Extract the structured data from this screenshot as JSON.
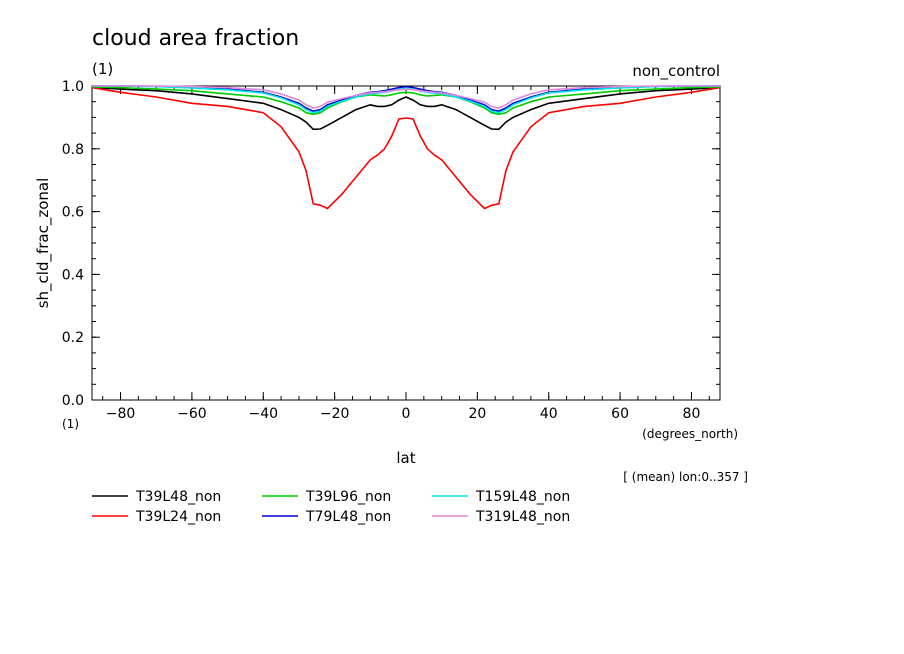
{
  "chart_data": {
    "type": "line",
    "title": "cloud area fraction",
    "title_units": "(1)",
    "subtitle_right": "non_control",
    "ylabel": "sh_cld_frac_zonal",
    "y_units": "(1)",
    "xlabel": "lat",
    "x_units": "(degrees_north)",
    "note": "[ (mean) lon:0..357 ]",
    "xlim": [
      -88,
      88
    ],
    "ylim": [
      0.0,
      1.0
    ],
    "x_ticks": [
      -80,
      -60,
      -40,
      -20,
      0,
      20,
      40,
      60,
      80
    ],
    "y_ticks": [
      0.0,
      0.2,
      0.4,
      0.6,
      0.8,
      1.0
    ],
    "x_tick_labels": [
      "−80",
      "−60",
      "−40",
      "−20",
      "0",
      "20",
      "40",
      "60",
      "80"
    ],
    "y_tick_labels": [
      "0.0",
      "0.2",
      "0.4",
      "0.6",
      "0.8",
      "1.0"
    ],
    "grid": false,
    "legend_position": "bottom",
    "x": [
      -88,
      -80,
      -70,
      -60,
      -50,
      -40,
      -35,
      -30,
      -28,
      -26,
      -24,
      -22,
      -18,
      -14,
      -10,
      -8,
      -6,
      -4,
      -2,
      0,
      2,
      4,
      6,
      8,
      10,
      14,
      18,
      22,
      24,
      26,
      28,
      30,
      35,
      40,
      50,
      60,
      70,
      80,
      88
    ],
    "series": [
      {
        "name": "T39L48_non",
        "color": "#000000",
        "values": [
          0.995,
          0.99,
          0.985,
          0.975,
          0.96,
          0.945,
          0.925,
          0.9,
          0.885,
          0.862,
          0.863,
          0.875,
          0.9,
          0.925,
          0.94,
          0.935,
          0.935,
          0.94,
          0.955,
          0.965,
          0.955,
          0.94,
          0.935,
          0.935,
          0.94,
          0.925,
          0.9,
          0.875,
          0.863,
          0.862,
          0.885,
          0.9,
          0.925,
          0.945,
          0.96,
          0.975,
          0.985,
          0.99,
          0.995
        ]
      },
      {
        "name": "T39L24_non",
        "color": "#ff0000",
        "values": [
          0.995,
          0.98,
          0.965,
          0.945,
          0.935,
          0.915,
          0.87,
          0.79,
          0.73,
          0.625,
          0.62,
          0.61,
          0.655,
          0.71,
          0.765,
          0.78,
          0.8,
          0.84,
          0.895,
          0.898,
          0.895,
          0.84,
          0.8,
          0.78,
          0.765,
          0.71,
          0.655,
          0.61,
          0.62,
          0.625,
          0.73,
          0.79,
          0.87,
          0.915,
          0.935,
          0.945,
          0.965,
          0.98,
          0.995
        ]
      },
      {
        "name": "T39L96_non",
        "color": "#00cc00",
        "values": [
          0.997,
          0.995,
          0.99,
          0.985,
          0.975,
          0.965,
          0.95,
          0.93,
          0.915,
          0.91,
          0.915,
          0.93,
          0.95,
          0.965,
          0.972,
          0.97,
          0.968,
          0.972,
          0.978,
          0.98,
          0.978,
          0.972,
          0.968,
          0.97,
          0.972,
          0.965,
          0.95,
          0.93,
          0.915,
          0.91,
          0.915,
          0.93,
          0.95,
          0.965,
          0.975,
          0.985,
          0.99,
          0.995,
          0.997
        ]
      },
      {
        "name": "T79L48_non",
        "color": "#0000cc",
        "values": [
          1.0,
          1.0,
          0.999,
          0.995,
          0.99,
          0.98,
          0.965,
          0.945,
          0.93,
          0.92,
          0.925,
          0.94,
          0.955,
          0.97,
          0.98,
          0.982,
          0.985,
          0.99,
          0.995,
          0.998,
          0.995,
          0.99,
          0.985,
          0.982,
          0.98,
          0.97,
          0.955,
          0.94,
          0.925,
          0.92,
          0.93,
          0.945,
          0.965,
          0.98,
          0.99,
          0.995,
          0.999,
          1.0,
          1.0
        ]
      },
      {
        "name": "T159L48_non",
        "color": "#00e5e5",
        "values": [
          1.0,
          1.0,
          0.998,
          0.994,
          0.988,
          0.978,
          0.962,
          0.94,
          0.925,
          0.915,
          0.92,
          0.935,
          0.952,
          0.965,
          0.975,
          0.977,
          0.98,
          0.984,
          0.99,
          0.993,
          0.99,
          0.984,
          0.98,
          0.977,
          0.975,
          0.965,
          0.952,
          0.935,
          0.92,
          0.915,
          0.925,
          0.94,
          0.962,
          0.978,
          0.988,
          0.994,
          0.998,
          1.0,
          1.0
        ]
      },
      {
        "name": "T319L48_non",
        "color": "#dd88dd",
        "values": [
          1.0,
          1.0,
          1.0,
          0.998,
          0.995,
          0.988,
          0.975,
          0.955,
          0.94,
          0.93,
          0.935,
          0.948,
          0.96,
          0.97,
          0.978,
          0.98,
          0.982,
          0.985,
          0.988,
          0.99,
          0.988,
          0.985,
          0.982,
          0.98,
          0.978,
          0.97,
          0.96,
          0.948,
          0.935,
          0.93,
          0.94,
          0.955,
          0.975,
          0.988,
          0.995,
          0.998,
          1.0,
          1.0,
          1.0
        ]
      }
    ]
  }
}
